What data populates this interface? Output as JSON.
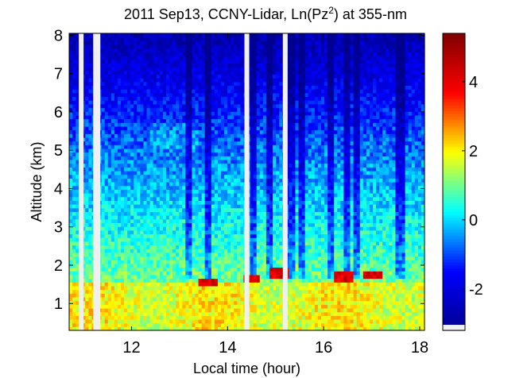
{
  "chart_data": {
    "type": "heatmap",
    "title": {
      "prefix": "2011 Sep13, CCNY-Lidar, Ln(Pz",
      "superscript": "2",
      "suffix": ") at 355-nm"
    },
    "xlabel": "Local time (hour)",
    "ylabel": "Altitude (km)",
    "xlim": [
      10.7,
      18.1
    ],
    "ylim": [
      0.3,
      8.05
    ],
    "x_ticks": [
      12,
      14,
      16,
      18
    ],
    "y_ticks": [
      1,
      2,
      3,
      4,
      5,
      6,
      7,
      8
    ],
    "colorbar": {
      "colormap": "jet",
      "clim": [
        -3.2,
        5.4
      ],
      "ticks": [
        -2,
        0,
        2,
        4
      ],
      "colors": [
        "#00008f",
        "#0000ff",
        "#00ffff",
        "#ffff00",
        "#ff0000",
        "#800000"
      ]
    },
    "data_gaps_hours": [
      [
        10.9,
        11.0
      ],
      [
        11.2,
        11.35
      ],
      [
        14.35,
        14.45
      ],
      [
        15.15,
        15.25
      ]
    ]
  }
}
